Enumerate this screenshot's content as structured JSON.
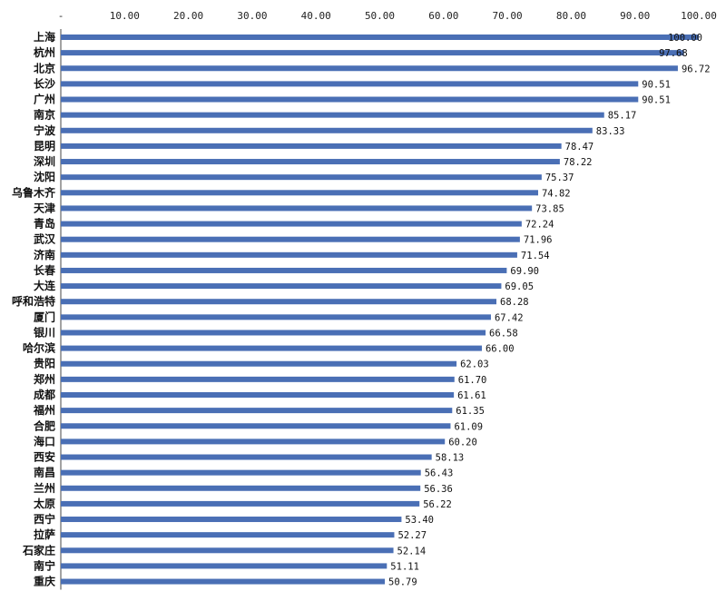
{
  "chart_data": {
    "type": "bar",
    "orientation": "horizontal",
    "title": "",
    "xlabel": "",
    "ylabel": "",
    "xlim": [
      0,
      100
    ],
    "x_axis_position": "top",
    "grid": false,
    "legend": "none",
    "bar_color": "#4a6fb5",
    "x_tick_labels": [
      "-",
      "10.00",
      "20.00",
      "30.00",
      "40.00",
      "50.00",
      "60.00",
      "70.00",
      "80.00",
      "90.00",
      "100.00"
    ],
    "x_tick_values": [
      0,
      10,
      20,
      30,
      40,
      50,
      60,
      70,
      80,
      90,
      100
    ],
    "categories": [
      "上海",
      "杭州",
      "北京",
      "长沙",
      "广州",
      "南京",
      "宁波",
      "昆明",
      "深圳",
      "沈阳",
      "乌鲁木齐",
      "天津",
      "青岛",
      "武汉",
      "济南",
      "长春",
      "大连",
      "呼和浩特",
      "厦门",
      "银川",
      "哈尔滨",
      "贵阳",
      "郑州",
      "成都",
      "福州",
      "合肥",
      "海口",
      "西安",
      "南昌",
      "兰州",
      "太原",
      "西宁",
      "拉萨",
      "石家庄",
      "南宁",
      "重庆"
    ],
    "values": [
      100.0,
      97.68,
      96.72,
      90.51,
      90.51,
      85.17,
      83.33,
      78.47,
      78.22,
      75.37,
      74.82,
      73.85,
      72.24,
      71.96,
      71.54,
      69.9,
      69.05,
      68.28,
      67.42,
      66.58,
      66.0,
      62.03,
      61.7,
      61.61,
      61.35,
      61.09,
      60.2,
      58.13,
      56.43,
      56.36,
      56.22,
      53.4,
      52.27,
      52.14,
      51.11,
      50.79
    ],
    "value_labels": [
      "100.00",
      "97.68",
      "96.72",
      "90.51",
      "90.51",
      "85.17",
      "83.33",
      "78.47",
      "78.22",
      "75.37",
      "74.82",
      "73.85",
      "72.24",
      "71.96",
      "71.54",
      "69.90",
      "69.05",
      "68.28",
      "67.42",
      "66.58",
      "66.00",
      "62.03",
      "61.70",
      "61.61",
      "61.35",
      "61.09",
      "60.20",
      "58.13",
      "56.43",
      "56.36",
      "56.22",
      "53.40",
      "52.27",
      "52.14",
      "51.11",
      "50.79"
    ]
  }
}
